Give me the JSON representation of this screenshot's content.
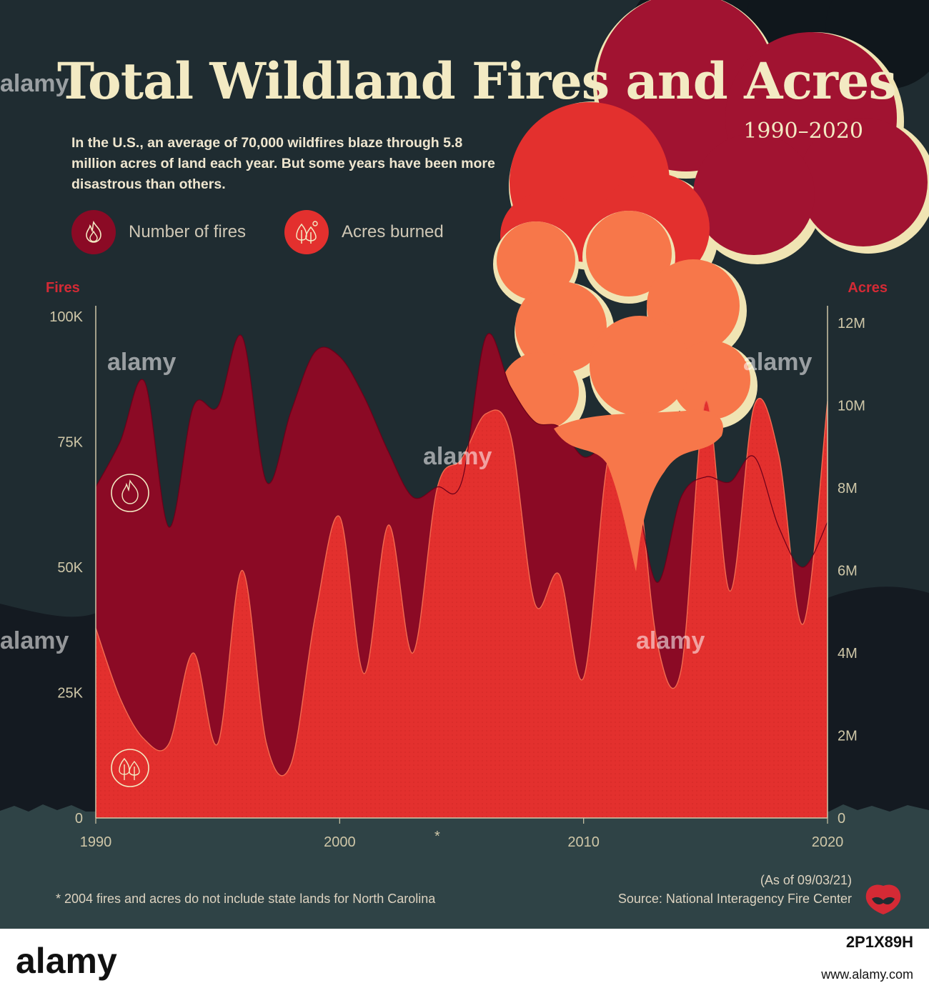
{
  "header": {
    "title": "Total Wildland Fires and Acres",
    "subtitle": "1990–2020",
    "intro": "In the U.S., an average of 70,000 wildfires blaze through 5.8 million acres of land each year. But some years have been more disastrous than others."
  },
  "legend": {
    "fires_label": "Number of fires",
    "acres_label": "Acres burned",
    "fires_icon": "flame-icon",
    "acres_icon": "trees-icon"
  },
  "axes": {
    "left_title": "Fires",
    "right_title": "Acres",
    "asterisk": "*"
  },
  "footer": {
    "note": "* 2004 fires and acres do not include state lands for North Carolina",
    "as_of": "(As of 09/03/21)",
    "source": "Source:  National Interagency Fire Center"
  },
  "watermark": {
    "text": "alamy",
    "code": "2P1X89H",
    "site": "www.alamy.com"
  },
  "colors": {
    "background": "#1f2c31",
    "fires": "#8b0a25",
    "acres": "#e3302e",
    "text": "#f3eac3",
    "axis": "#cfc7a8"
  },
  "chart_data": {
    "type": "area",
    "x": [
      1990,
      1991,
      1992,
      1993,
      1994,
      1995,
      1996,
      1997,
      1998,
      1999,
      2000,
      2001,
      2002,
      2003,
      2004,
      2005,
      2006,
      2007,
      2008,
      2009,
      2010,
      2011,
      2012,
      2013,
      2014,
      2015,
      2016,
      2017,
      2018,
      2019,
      2020
    ],
    "x_ticks": [
      1990,
      2000,
      2010,
      2020
    ],
    "series": [
      {
        "name": "Number of fires",
        "axis": "left",
        "values": [
          66000,
          75000,
          87000,
          58000,
          82000,
          82000,
          96000,
          67000,
          81000,
          93000,
          92000,
          84000,
          73000,
          64000,
          66000,
          67000,
          96000,
          86000,
          79000,
          78000,
          72000,
          74000,
          68000,
          47000,
          64000,
          68000,
          67000,
          72000,
          58000,
          50000,
          59000
        ]
      },
      {
        "name": "Acres burned",
        "axis": "right",
        "values": [
          4600000,
          2900000,
          1900000,
          1800000,
          4000000,
          1800000,
          6000000,
          1800000,
          1300000,
          4900000,
          7300000,
          3500000,
          7100000,
          4000000,
          8000000,
          8700000,
          9800000,
          9300000,
          5200000,
          5900000,
          3400000,
          8700000,
          9300000,
          4300000,
          3600000,
          10100000,
          5500000,
          10000000,
          8800000,
          4700000,
          10100000
        ]
      }
    ],
    "y_left": {
      "label": "Fires",
      "ticks": [
        "0",
        "25K",
        "50K",
        "75K",
        "100K"
      ],
      "range": [
        0,
        100000
      ]
    },
    "y_right": {
      "label": "Acres",
      "ticks": [
        "0",
        "2M",
        "4M",
        "6M",
        "8M",
        "10M",
        "12M"
      ],
      "range": [
        0,
        12000000
      ]
    },
    "annotation": {
      "x": 2004,
      "text": "*"
    },
    "grid": false
  }
}
